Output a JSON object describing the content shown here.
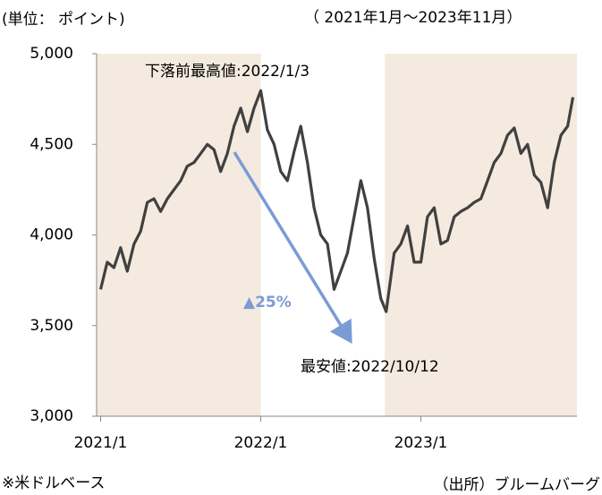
{
  "chart_data": {
    "type": "line",
    "y_label": "(単位： ポイント)",
    "subtitle": "（ 2021年1月～2023年11月）",
    "footnote": "※米ドルベース",
    "source": "（出所）ブルームバーグ",
    "annotations": [
      "下落前最高値:2022/1/3",
      "最安値:2022/10/12",
      "▲25%"
    ],
    "color": "#404040",
    "shade_color": "#f4eadf",
    "shaded_ranges": [
      [
        -0.3,
        12
      ],
      [
        21.3,
        35.7
      ]
    ],
    "x": [
      0,
      0.5,
      1,
      1.5,
      2,
      2.5,
      3,
      3.5,
      4,
      4.5,
      5,
      5.5,
      6,
      6.5,
      7,
      7.5,
      8,
      8.5,
      9,
      9.5,
      10,
      10.5,
      11,
      11.5,
      12,
      12.5,
      13,
      13.5,
      14,
      14.5,
      15,
      15.5,
      16,
      16.5,
      17,
      17.5,
      18,
      18.5,
      19,
      19.5,
      20,
      20.5,
      21,
      21.4,
      22,
      22.5,
      23,
      23.5,
      24,
      24.5,
      25,
      25.5,
      26,
      26.5,
      27,
      27.5,
      28,
      28.5,
      29,
      29.5,
      30,
      30.5,
      31,
      31.5,
      32,
      32.5,
      33,
      33.5,
      34,
      34.5,
      35,
      35.4
    ],
    "values": [
      3700,
      3850,
      3820,
      3930,
      3800,
      3950,
      4020,
      4180,
      4200,
      4130,
      4200,
      4250,
      4300,
      4380,
      4400,
      4450,
      4500,
      4470,
      4350,
      4450,
      4600,
      4700,
      4570,
      4700,
      4796,
      4580,
      4500,
      4350,
      4300,
      4460,
      4600,
      4400,
      4150,
      4000,
      3950,
      3700,
      3800,
      3900,
      4100,
      4300,
      4150,
      3870,
      3650,
      3577,
      3900,
      3950,
      4050,
      3850,
      3850,
      4100,
      4150,
      3950,
      3970,
      4100,
      4130,
      4150,
      4180,
      4200,
      4300,
      4400,
      4450,
      4550,
      4590,
      4450,
      4500,
      4330,
      4290,
      4150,
      4400,
      4550,
      4600,
      4760
    ],
    "xlim": [
      -0.3,
      35.7
    ],
    "xticks": [
      {
        "value": 0,
        "label": "2021/1"
      },
      {
        "value": 12,
        "label": "2022/1"
      },
      {
        "value": 24,
        "label": "2023/1"
      }
    ],
    "ylim": [
      3000,
      5000
    ],
    "yticks": [
      {
        "value": 3000,
        "label": "3,000"
      },
      {
        "value": 3500,
        "label": "3,500"
      },
      {
        "value": 4000,
        "label": "4,000"
      },
      {
        "value": 4500,
        "label": "4,500"
      },
      {
        "value": 5000,
        "label": "5,000"
      }
    ],
    "grid": false
  }
}
